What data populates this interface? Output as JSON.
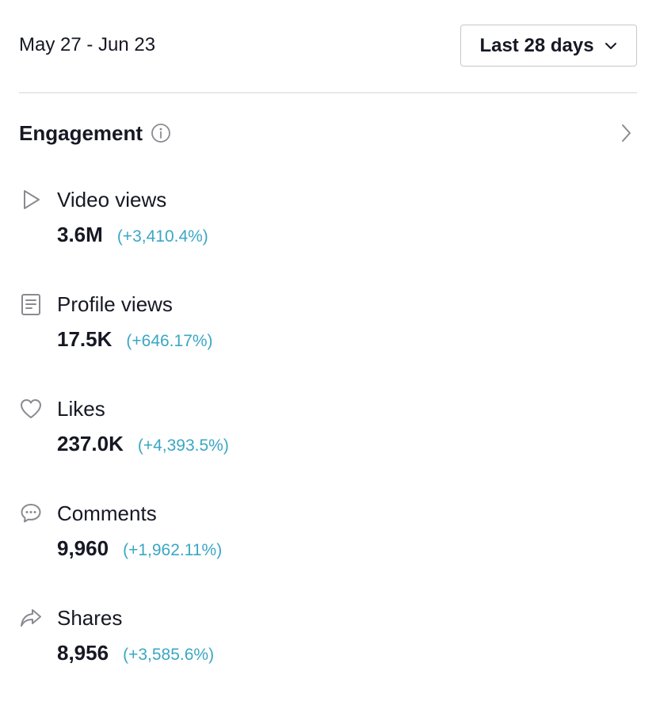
{
  "header": {
    "date_range": "May 27 - Jun 23",
    "period_selected": "Last 28 days"
  },
  "engagement": {
    "title": "Engagement",
    "metrics": [
      {
        "label": "Video views",
        "value": "3.6M",
        "change": "(+3,410.4%)",
        "icon": "play-icon"
      },
      {
        "label": "Profile views",
        "value": "17.5K",
        "change": "(+646.17%)",
        "icon": "document-icon"
      },
      {
        "label": "Likes",
        "value": "237.0K",
        "change": "(+4,393.5%)",
        "icon": "heart-icon"
      },
      {
        "label": "Comments",
        "value": "9,960",
        "change": "(+1,962.11%)",
        "icon": "comment-icon"
      },
      {
        "label": "Shares",
        "value": "8,956",
        "change": "(+3,585.6%)",
        "icon": "share-icon"
      }
    ]
  },
  "colors": {
    "text": "#161823",
    "change": "#3aa7c4",
    "icon": "#8a8b91"
  }
}
